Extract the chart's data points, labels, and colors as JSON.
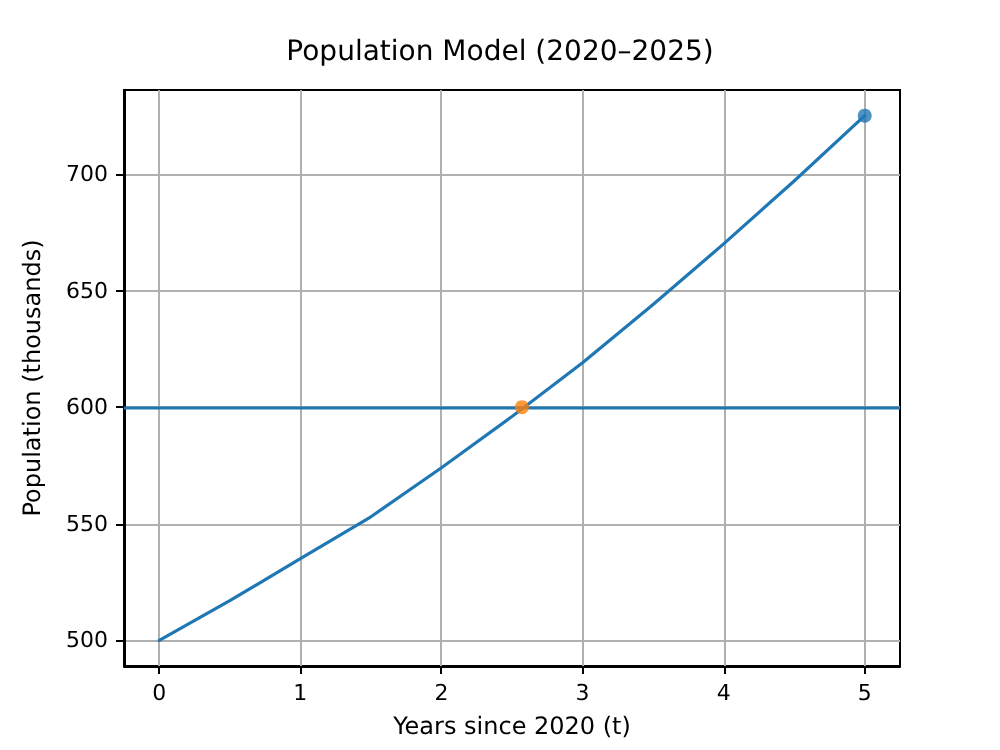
{
  "chart_data": {
    "type": "line",
    "title": "Population Model (2020–2025)",
    "xlabel": "Years since 2020 (t)",
    "ylabel": "Population (thousands)",
    "series": [
      {
        "color": "#1f77b4",
        "marker": "none",
        "x": [
          0,
          0.5,
          1,
          1.5,
          2,
          2.5,
          3,
          3.5,
          4,
          4.5,
          5
        ],
        "values": [
          500,
          517,
          535,
          553,
          574,
          596,
          619,
          644,
          670,
          697,
          725
        ]
      },
      {
        "type": "scatter",
        "color": "#1f77b4",
        "marker": "circle",
        "x": [
          5
        ],
        "values": [
          725
        ]
      },
      {
        "type": "scatter",
        "color": "#ff7f0e",
        "marker": "circle",
        "x": [
          2.57
        ],
        "values": [
          600
        ]
      }
    ],
    "ref_lines": [
      {
        "axis": "y",
        "value": 600,
        "color": "#1f77b4",
        "line_style": "solid"
      }
    ],
    "xlim": [
      -0.25,
      5.25
    ],
    "xticks": [
      0,
      1,
      2,
      3,
      4,
      5
    ],
    "ylim": [
      489,
      736
    ],
    "yticks": [
      500,
      550,
      600,
      650,
      700
    ],
    "grid": true
  }
}
